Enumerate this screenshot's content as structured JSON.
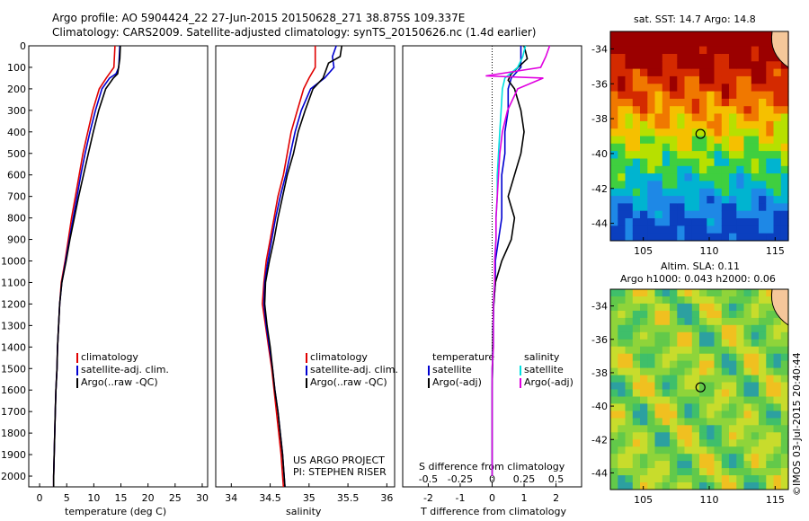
{
  "header": {
    "line1": "Argo profile: AO 5904424_22 27-Jun-2015 20150628_271 38.875S 109.337E",
    "line2": "Climatology: CARS2009. Satellite-adjusted climatology: synTS_20150626.nc (1.4d earlier)"
  },
  "panels": {
    "temp_xlabel": "temperature (deg C)",
    "sal_xlabel": "salinity",
    "diff_xlabel_bottom": "T difference from climatology",
    "diff_xlabel_top": "S difference from climatology",
    "project_line1": "US ARGO PROJECT",
    "project_line2": "PI: STEPHEN RISER"
  },
  "legend_profiles": {
    "items": [
      {
        "label": "climatology",
        "color": "#e00000"
      },
      {
        "label": "satellite-adj. clim.",
        "color": "#0000d0"
      },
      {
        "label": "Argo(..raw -QC)",
        "color": "#000000"
      }
    ]
  },
  "legend_diff": {
    "temperature_title": "temperature",
    "salinity_title": "salinity",
    "t_sat": "satellite",
    "t_argo": "Argo(-adj)",
    "s_sat": "satellite",
    "s_argo": "Argo(-adj)",
    "t_sat_color": "#0000d0",
    "t_argo_color": "#000000",
    "s_sat_color": "#00e0e0",
    "s_argo_color": "#e000e0"
  },
  "maps": {
    "sst_title": "sat. SST: 14.7 Argo: 14.8",
    "sla_title1": "Altim. SLA: 0.11",
    "sla_title2": "Argo h1000: 0.043 h2000: 0.06",
    "lat_ticks": [
      "-34",
      "-36",
      "-38",
      "-40",
      "-42",
      "-44"
    ],
    "lon_ticks": [
      "105",
      "110",
      "115"
    ],
    "float_position": {
      "lon": 109.337,
      "lat": -38.875
    }
  },
  "footer": {
    "credit": "©IMOS 03-Jul-2015 20:40:44"
  },
  "chart_data": [
    {
      "type": "line",
      "name": "temperature profile",
      "xlabel": "temperature (deg C)",
      "ylabel": "",
      "xlim": [
        -2,
        31
      ],
      "ylim": [
        2050,
        0
      ],
      "xticks": [
        0,
        5,
        10,
        15,
        20,
        25,
        30
      ],
      "yticks": [
        0,
        100,
        200,
        300,
        400,
        500,
        600,
        700,
        800,
        900,
        1000,
        1100,
        1200,
        1300,
        1400,
        1500,
        1600,
        1700,
        1800,
        1900,
        2000
      ],
      "series": [
        {
          "name": "climatology",
          "color": "#e00000",
          "depth": [
            0,
            100,
            150,
            200,
            300,
            400,
            500,
            600,
            700,
            800,
            900,
            1000,
            1100,
            1200,
            1300,
            1400,
            1500,
            1600,
            1700,
            1800,
            1900,
            2000,
            2050
          ],
          "values": [
            13.9,
            13.7,
            12.3,
            11.0,
            9.8,
            8.9,
            8.0,
            7.3,
            6.6,
            5.9,
            5.3,
            4.7,
            4.0,
            3.7,
            3.5,
            3.3,
            3.2,
            3.0,
            2.9,
            2.8,
            2.7,
            2.6,
            2.6
          ]
        },
        {
          "name": "satellite-adj. clim.",
          "color": "#0000d0",
          "depth": [
            0,
            100,
            130,
            150,
            200,
            300,
            400,
            500,
            600,
            700,
            800,
            900,
            1000,
            1100,
            1200,
            1300,
            1400,
            1500,
            1600,
            1700,
            1800,
            1900,
            2000,
            2050
          ],
          "values": [
            14.8,
            14.6,
            14.1,
            12.9,
            11.5,
            10.3,
            9.3,
            8.4,
            7.6,
            6.9,
            6.2,
            5.5,
            4.8,
            4.1,
            3.7,
            3.5,
            3.3,
            3.2,
            3.0,
            2.9,
            2.8,
            2.7,
            2.6,
            2.6
          ]
        },
        {
          "name": "Argo(..raw -QC)",
          "color": "#000000",
          "depth": [
            0,
            60,
            130,
            150,
            200,
            300,
            400,
            500,
            600,
            700,
            800,
            900,
            1000,
            1100,
            1200,
            1300,
            1400,
            1500,
            1600,
            1700,
            1800,
            1900,
            2000,
            2050
          ],
          "values": [
            14.9,
            14.8,
            14.4,
            13.6,
            12.2,
            10.9,
            9.9,
            9.0,
            8.1,
            7.2,
            6.4,
            5.6,
            4.9,
            4.1,
            3.7,
            3.5,
            3.3,
            3.2,
            3.0,
            2.9,
            2.8,
            2.7,
            2.6,
            2.6
          ]
        }
      ]
    },
    {
      "type": "line",
      "name": "salinity profile",
      "xlabel": "salinity",
      "xlim": [
        33.8,
        36.1
      ],
      "ylim": [
        2050,
        0
      ],
      "xticks": [
        34,
        34.5,
        35,
        35.5,
        36
      ],
      "series": [
        {
          "name": "climatology",
          "color": "#e00000",
          "depth": [
            0,
            100,
            150,
            200,
            300,
            400,
            500,
            600,
            700,
            800,
            900,
            1000,
            1100,
            1200,
            1300,
            1400,
            1500,
            1600,
            1700,
            1800,
            1900,
            2000,
            2050
          ],
          "values": [
            35.08,
            35.08,
            35.0,
            34.93,
            34.85,
            34.77,
            34.72,
            34.67,
            34.6,
            34.55,
            34.5,
            34.45,
            34.42,
            34.4,
            34.44,
            34.48,
            34.52,
            34.55,
            34.58,
            34.61,
            34.64,
            34.66,
            34.67
          ]
        },
        {
          "name": "satellite-adj. clim.",
          "color": "#0000d0",
          "depth": [
            0,
            50,
            100,
            150,
            200,
            300,
            400,
            500,
            600,
            700,
            800,
            900,
            1000,
            1100,
            1200,
            1300,
            1400,
            1500,
            1600,
            1700,
            1800,
            1900,
            2000,
            2050
          ],
          "values": [
            35.35,
            35.3,
            35.32,
            35.2,
            35.02,
            34.9,
            34.82,
            34.76,
            34.7,
            34.63,
            34.57,
            34.52,
            34.47,
            34.43,
            34.42,
            34.45,
            34.49,
            34.53,
            34.56,
            34.6,
            34.63,
            34.66,
            34.68,
            34.69
          ]
        },
        {
          "name": "Argo(..raw -QC)",
          "color": "#000000",
          "depth": [
            0,
            50,
            80,
            150,
            200,
            300,
            400,
            500,
            600,
            700,
            800,
            900,
            1000,
            1100,
            1200,
            1300,
            1400,
            1500,
            1600,
            1700,
            1800,
            1900,
            2000,
            2050
          ],
          "values": [
            35.42,
            35.4,
            35.25,
            35.18,
            35.05,
            34.95,
            34.86,
            34.8,
            34.72,
            34.66,
            34.6,
            34.55,
            34.49,
            34.44,
            34.43,
            34.46,
            34.5,
            34.53,
            34.56,
            34.6,
            34.63,
            34.66,
            34.68,
            34.69
          ]
        }
      ]
    },
    {
      "type": "line",
      "name": "difference from climatology",
      "xlabel": "T difference from climatology",
      "xlabel_top": "S difference from climatology",
      "xlim": [
        -2.8,
        2.8
      ],
      "ylim": [
        2050,
        0
      ],
      "xticks": [
        -2,
        -1,
        0,
        1,
        2
      ],
      "xticks_top": [
        "-0.5",
        "-0.25",
        "0",
        "0.25",
        "0.5"
      ],
      "series": [
        {
          "name": "temperature satellite",
          "color": "#0000d0",
          "depth": [
            0,
            100,
            150,
            200,
            300,
            400,
            500,
            600,
            700,
            800,
            900,
            1000,
            1100,
            1200,
            1300,
            1400,
            1500,
            1600,
            1700,
            1800,
            1900,
            2000
          ],
          "values": [
            0.9,
            0.9,
            0.6,
            0.5,
            0.5,
            0.4,
            0.4,
            0.3,
            0.3,
            0.3,
            0.2,
            0.1,
            0.1,
            0.05,
            0.03,
            0.02,
            0.01,
            0.0,
            0.0,
            0.0,
            0.0,
            0.0
          ]
        },
        {
          "name": "temperature Argo(-adj)",
          "color": "#000000",
          "depth": [
            0,
            60,
            130,
            160,
            200,
            300,
            400,
            500,
            600,
            700,
            800,
            900,
            1000,
            1100,
            1200,
            1300,
            1400,
            1500,
            1600,
            1700,
            1800,
            1900,
            2000
          ],
          "values": [
            1.0,
            1.1,
            0.6,
            0.5,
            0.7,
            0.9,
            1.0,
            0.9,
            0.7,
            0.5,
            0.7,
            0.6,
            0.3,
            0.1,
            0.05,
            0.03,
            0.02,
            0.01,
            0.0,
            0.0,
            0.0,
            0.0,
            0.0
          ]
        },
        {
          "name": "salinity satellite",
          "color": "#00e0e0",
          "depth": [
            0,
            50,
            100,
            150,
            200,
            300,
            400,
            500,
            600,
            700,
            800,
            900,
            1000,
            1100,
            1200,
            1300,
            1400,
            1500,
            1600,
            1700,
            1800,
            1900,
            2000
          ],
          "values": [
            0.26,
            0.24,
            0.2,
            0.1,
            0.08,
            0.07,
            0.06,
            0.05,
            0.04,
            0.04,
            0.03,
            0.03,
            0.02,
            0.02,
            0.01,
            0.01,
            0.01,
            0.0,
            0.0,
            0.0,
            0.0,
            0.0,
            0.0
          ]
        },
        {
          "name": "salinity Argo(-adj)",
          "color": "#e000e0",
          "depth": [
            0,
            50,
            100,
            140,
            150,
            200,
            300,
            400,
            500,
            600,
            700,
            800,
            900,
            1000,
            1100,
            1200,
            1300,
            1400,
            1500,
            1600,
            1700,
            1800,
            1900,
            2000
          ],
          "values": [
            0.45,
            0.42,
            0.38,
            -0.05,
            0.4,
            0.2,
            0.12,
            0.08,
            0.06,
            0.05,
            0.04,
            0.03,
            0.03,
            0.02,
            0.02,
            0.01,
            0.01,
            0.01,
            0.0,
            0.0,
            0.0,
            0.0,
            0.0,
            0.0
          ]
        }
      ]
    },
    {
      "type": "heatmap",
      "name": "satellite SST map",
      "title": "sat. SST: 14.7 Argo: 14.8",
      "xlim": [
        102.5,
        116
      ],
      "ylim": [
        -45,
        -33
      ],
      "colors_warm_to_cool": [
        "#9b0000",
        "#d42a00",
        "#f07800",
        "#f5c000",
        "#b7e000",
        "#3fcf3f",
        "#00b4d0",
        "#1e88e6",
        "#0b3fbf"
      ]
    },
    {
      "type": "heatmap",
      "name": "altimeter SLA map",
      "title": "Altim. SLA: 0.11",
      "xlim": [
        102.5,
        116
      ],
      "ylim": [
        -45,
        -33
      ]
    }
  ]
}
